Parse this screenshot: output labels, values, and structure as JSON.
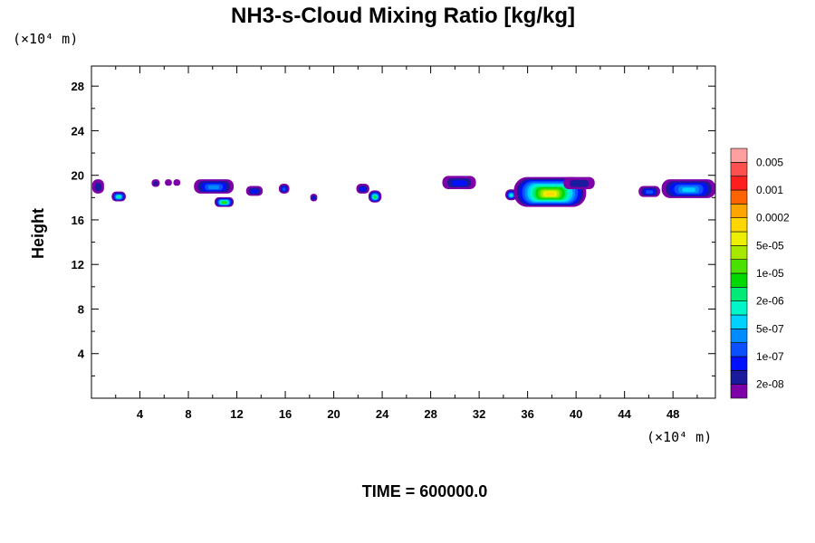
{
  "chart_data": {
    "type": "heatmap",
    "title": "NH3-s-Cloud Mixing Ratio [kg/kg]",
    "ylabel": "Height",
    "x_unit_label": "(×10⁴ m)",
    "y_unit_label": "(×10⁴ m)",
    "xlim": [
      0,
      51.5
    ],
    "ylim": [
      0,
      29.8
    ],
    "x_ticks": [
      4,
      8,
      12,
      16,
      20,
      24,
      28,
      32,
      36,
      40,
      44,
      48
    ],
    "y_ticks": [
      4,
      8,
      12,
      16,
      20,
      24,
      28
    ],
    "footer": "TIME = 600000.0",
    "colorbar": {
      "colors": [
        "#7d00a8",
        "#1a1a9c",
        "#0010ff",
        "#0a50ff",
        "#008cff",
        "#00d2ff",
        "#00f5c8",
        "#00ea78",
        "#00d800",
        "#4ae000",
        "#a8e800",
        "#ecf000",
        "#ffd700",
        "#ffa500",
        "#ff6400",
        "#ff1e1e",
        "#ff5050",
        "#ffa0a0"
      ],
      "labels": [
        "2e-08",
        "1e-07",
        "5e-07",
        "2e-06",
        "1e-05",
        "5e-05",
        "0.0002",
        "0.001",
        "0.005"
      ]
    },
    "cloud_patches": [
      {
        "x0": 0.1,
        "x1": 1.0,
        "y0": 18.4,
        "y1": 19.6,
        "peak": 1
      },
      {
        "x0": 1.7,
        "x1": 2.8,
        "y0": 17.7,
        "y1": 18.5,
        "peak": 7
      },
      {
        "x0": 5.0,
        "x1": 5.6,
        "y0": 19.0,
        "y1": 19.6,
        "peak": 1
      },
      {
        "x0": 6.1,
        "x1": 6.6,
        "y0": 19.1,
        "y1": 19.6,
        "peak": 0
      },
      {
        "x0": 6.8,
        "x1": 7.3,
        "y0": 19.1,
        "y1": 19.6,
        "peak": 0
      },
      {
        "x0": 8.5,
        "x1": 11.7,
        "y0": 18.4,
        "y1": 19.6,
        "peak": 4
      },
      {
        "x0": 10.2,
        "x1": 11.7,
        "y0": 17.2,
        "y1": 18.0,
        "peak": 9
      },
      {
        "x0": 12.8,
        "x1": 14.1,
        "y0": 18.2,
        "y1": 19.0,
        "peak": 2
      },
      {
        "x0": 15.5,
        "x1": 16.3,
        "y0": 18.4,
        "y1": 19.2,
        "peak": 3
      },
      {
        "x0": 18.1,
        "x1": 18.6,
        "y0": 17.7,
        "y1": 18.3,
        "peak": 2
      },
      {
        "x0": 21.9,
        "x1": 22.9,
        "y0": 18.4,
        "y1": 19.2,
        "peak": 2
      },
      {
        "x0": 22.9,
        "x1": 23.9,
        "y0": 17.6,
        "y1": 18.6,
        "peak": 8
      },
      {
        "x0": 29.0,
        "x1": 31.7,
        "y0": 18.8,
        "y1": 19.9,
        "peak": 2
      },
      {
        "x0": 34.2,
        "x1": 35.1,
        "y0": 17.8,
        "y1": 18.7,
        "peak": 6
      },
      {
        "x0": 34.9,
        "x1": 40.8,
        "y0": 17.2,
        "y1": 19.8,
        "peak": 12
      },
      {
        "x0": 39.0,
        "x1": 41.5,
        "y0": 18.8,
        "y1": 19.8,
        "peak": 1
      },
      {
        "x0": 45.2,
        "x1": 46.9,
        "y0": 18.1,
        "y1": 19.0,
        "peak": 3
      },
      {
        "x0": 47.1,
        "x1": 51.5,
        "y0": 18.0,
        "y1": 19.6,
        "peak": 5
      }
    ]
  }
}
